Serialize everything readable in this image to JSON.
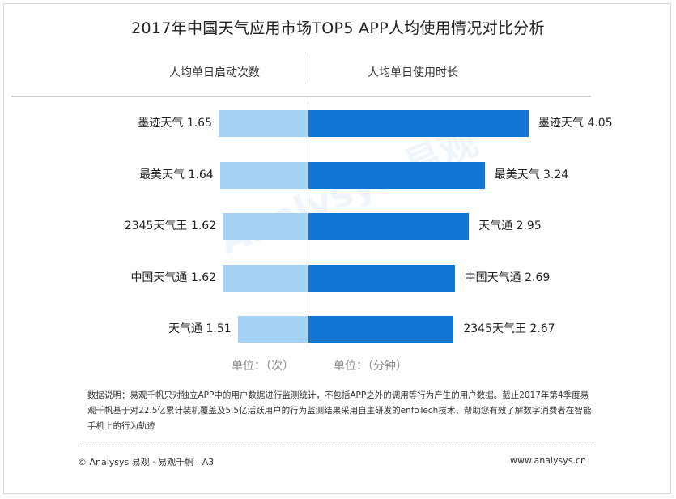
{
  "title": "2017年中国天气应用市场TOP5 APP人均使用情况对比分析",
  "chart_data": {
    "type": "bar",
    "layout": "butterfly",
    "left": {
      "header": "人均单日启动次数",
      "unit": "单位：（次）",
      "color": "#a6d2f5",
      "items": [
        {
          "name": "墨迹天气",
          "value": 1.65
        },
        {
          "name": "最美天气",
          "value": 1.64
        },
        {
          "name": "2345天气王",
          "value": 1.62
        },
        {
          "name": "中国天气通",
          "value": 1.62
        },
        {
          "name": "天气通",
          "value": 1.51
        }
      ]
    },
    "right": {
      "header": "人均单日使用时长",
      "unit": "单位：（分钟）",
      "color": "#1276d6",
      "items": [
        {
          "name": "墨迹天气",
          "value": 4.05
        },
        {
          "name": "最美天气",
          "value": 3.24
        },
        {
          "name": "天气通",
          "value": 2.95
        },
        {
          "name": "中国天气通",
          "value": 2.69
        },
        {
          "name": "2345天气王",
          "value": 2.67
        }
      ]
    }
  },
  "watermark": "Analysys 易观",
  "note": "数据说明：易观千帆只对独立APP中的用户数据进行监测统计，不包括APP之外的调用等行为产生的用户数据。截止2017年第4季度易观千帆基于对22.5亿累计装机覆盖及5.5亿活跃用户的行为监测结果采用自主研发的enfoTech技术，帮助您有效了解数字消费者在智能手机上的行为轨迹",
  "footer": {
    "left": "© Analysys 易观 · 易观千帆 · A3",
    "right": "www.analysys.cn"
  }
}
